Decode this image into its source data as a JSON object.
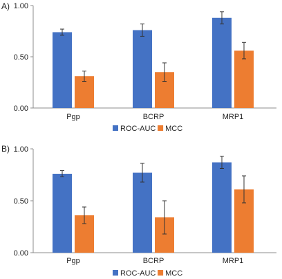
{
  "colors": {
    "roc_auc": "#4472C4",
    "mcc": "#ED7D31",
    "axis": "#8c8c8c",
    "error": "#333333"
  },
  "chart_data": [
    {
      "panel": "A)",
      "type": "bar",
      "categories": [
        "Pgp",
        "BCRP",
        "MRP1"
      ],
      "ylim": [
        0,
        1
      ],
      "yticks": [
        "0.00",
        "0.50",
        "1.00"
      ],
      "legend_position": "bottom-center",
      "grid": false,
      "series": [
        {
          "name": "ROC-AUC",
          "values": [
            0.74,
            0.76,
            0.88
          ],
          "errors": [
            0.03,
            0.06,
            0.06
          ]
        },
        {
          "name": "MCC",
          "values": [
            0.31,
            0.35,
            0.56
          ],
          "errors": [
            0.05,
            0.09,
            0.08
          ]
        }
      ]
    },
    {
      "panel": "B)",
      "type": "bar",
      "categories": [
        "Pgp",
        "BCRP",
        "MRP1"
      ],
      "ylim": [
        0,
        1
      ],
      "yticks": [
        "0.00",
        "0.50",
        "1.00"
      ],
      "legend_position": "bottom-center",
      "grid": false,
      "series": [
        {
          "name": "ROC-AUC",
          "values": [
            0.76,
            0.77,
            0.87
          ],
          "errors": [
            0.03,
            0.09,
            0.06
          ]
        },
        {
          "name": "MCC",
          "values": [
            0.36,
            0.34,
            0.61
          ],
          "errors": [
            0.08,
            0.16,
            0.13
          ]
        }
      ]
    }
  ]
}
